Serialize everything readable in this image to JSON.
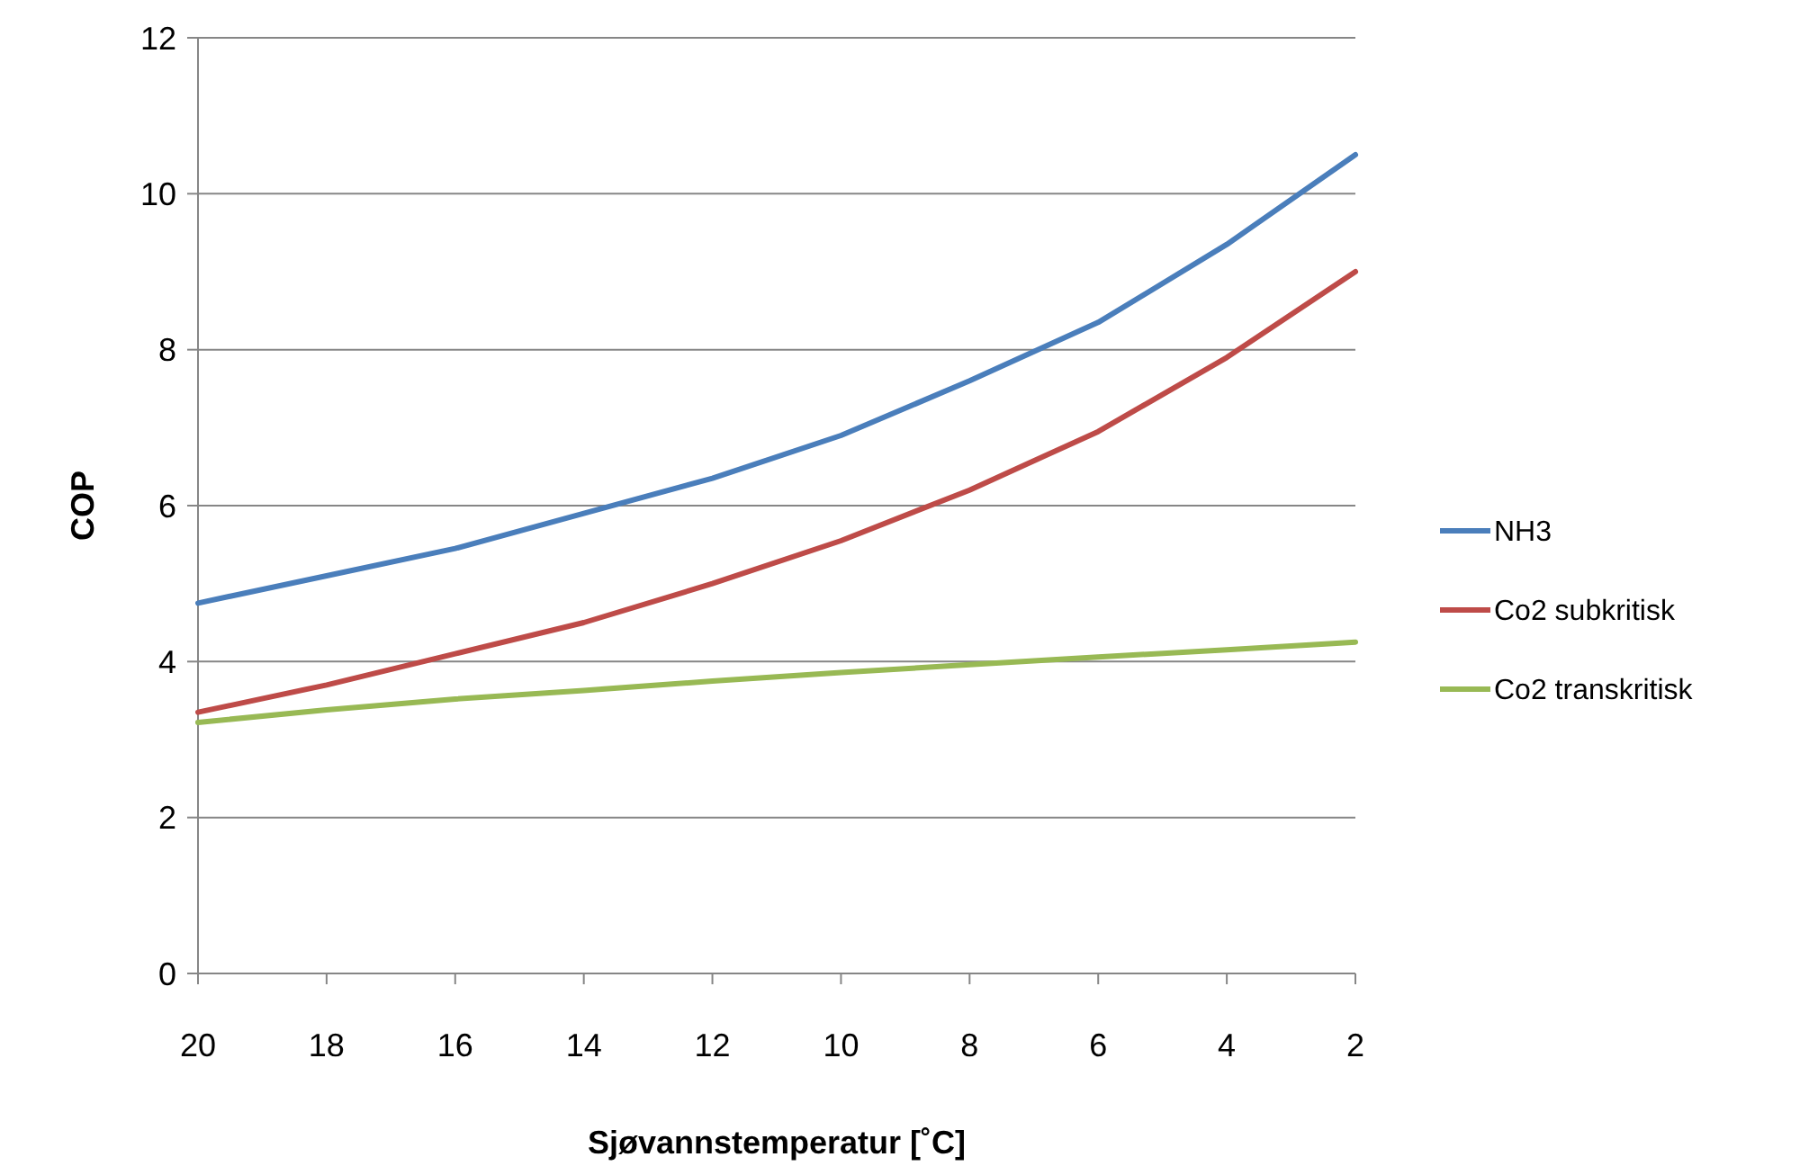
{
  "chart_data": {
    "type": "line",
    "xlabel": "Sjøvannstemperatur [˚C]",
    "ylabel": "COP",
    "categories": [
      "20",
      "18",
      "16",
      "14",
      "12",
      "10",
      "8",
      "6",
      "4",
      "2"
    ],
    "series": [
      {
        "name": "NH3",
        "color": "#4a7ebb",
        "values": [
          4.75,
          5.1,
          5.45,
          5.9,
          6.35,
          6.9,
          7.6,
          8.35,
          9.35,
          10.5
        ]
      },
      {
        "name": "Co2 subkritisk",
        "color": "#be4b48",
        "values": [
          3.35,
          3.7,
          4.1,
          4.5,
          5.0,
          5.55,
          6.2,
          6.95,
          7.9,
          9.0
        ]
      },
      {
        "name": "Co2 transkritisk",
        "color": "#98b954",
        "values": [
          3.22,
          3.38,
          3.52,
          3.63,
          3.75,
          3.86,
          3.96,
          4.06,
          4.15,
          4.25
        ]
      }
    ],
    "ylim": [
      0,
      12
    ],
    "yticks": [
      0,
      2,
      4,
      6,
      8,
      10,
      12
    ],
    "grid": "y",
    "legend": "right",
    "marker": "none",
    "line_style": "solid"
  }
}
